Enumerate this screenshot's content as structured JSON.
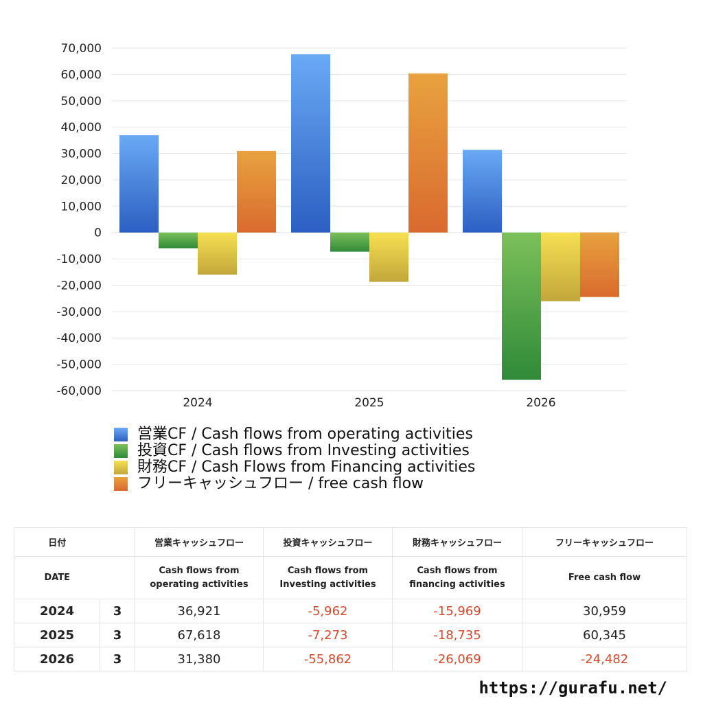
{
  "chart_data": {
    "type": "bar",
    "categories": [
      "2024",
      "2025",
      "2026"
    ],
    "series": [
      {
        "name": "営業CF / Cash flows from operating activities",
        "values": [
          36921,
          67618,
          31380
        ],
        "color_top": "#6aa9f4",
        "color_bottom": "#2c5fc2"
      },
      {
        "name": "投資CF / Cash flows from Investing activities",
        "values": [
          -5962,
          -7273,
          -55862
        ],
        "color_top": "#7cc05a",
        "color_bottom": "#2f8a38"
      },
      {
        "name": "財務CF / Cash Flows from Financing activities",
        "values": [
          -15969,
          -18735,
          -26069
        ],
        "color_top": "#f6e052",
        "color_bottom": "#c1a63a"
      },
      {
        "name": "フリーキャッシュフロー / free cash flow",
        "values": [
          30959,
          60345,
          -24482
        ],
        "color_top": "#e8a23e",
        "color_bottom": "#d96a2e"
      }
    ],
    "ylim": [
      -60000,
      70000
    ],
    "yticks": [
      70000,
      60000,
      50000,
      40000,
      30000,
      20000,
      10000,
      0,
      -10000,
      -20000,
      -30000,
      -40000,
      -50000,
      -60000
    ],
    "ytick_labels": [
      "70,000",
      "60,000",
      "50,000",
      "40,000",
      "30,000",
      "20,000",
      "10,000",
      "0",
      "-10,000",
      "-20,000",
      "-30,000",
      "-40,000",
      "-50,000",
      "-60,000"
    ],
    "grid": true,
    "legend_position": "bottom-left"
  },
  "table": {
    "header_jp": {
      "date": "日付",
      "operating": "営業キャッシュフロー",
      "investing": "投資キャッシュフロー",
      "financing": "財務キャッシュフロー",
      "free": "フリーキャッシュフロー"
    },
    "header_en": {
      "date": "DATE",
      "operating_1": "Cash flows from",
      "operating_2": "operating activities",
      "investing_1": "Cash flows from",
      "investing_2": "Investing activities",
      "financing_1": "Cash flows from",
      "financing_2": "financing activities",
      "free": "Free cash flow"
    },
    "rows": [
      {
        "year": "2024",
        "month": "3",
        "operating": "36,921",
        "investing": "-5,962",
        "financing": "-15,969",
        "free": "30,959"
      },
      {
        "year": "2025",
        "month": "3",
        "operating": "67,618",
        "investing": "-7,273",
        "financing": "-18,735",
        "free": "60,345"
      },
      {
        "year": "2026",
        "month": "3",
        "operating": "31,380",
        "investing": "-55,862",
        "financing": "-26,069",
        "free": "-24,482"
      }
    ]
  },
  "footer": {
    "url": "https://gurafu.net/"
  }
}
